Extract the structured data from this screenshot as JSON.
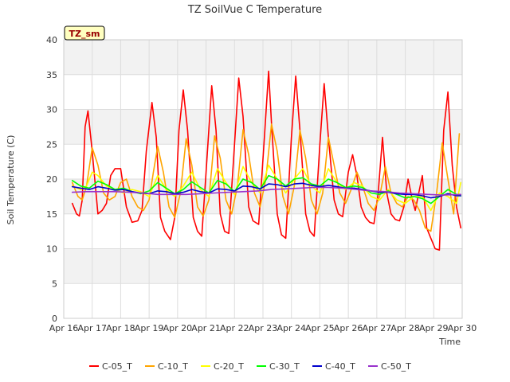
{
  "chart_data": {
    "type": "line",
    "title": "TZ SoilVue C Temperature",
    "xlabel": "Time",
    "ylabel": "Soil Temperature (C)",
    "annotation": "TZ_sm",
    "ylim": [
      0,
      40
    ],
    "xlim": [
      0,
      14
    ],
    "yticks": [
      0,
      5,
      10,
      15,
      20,
      25,
      30,
      35,
      40
    ],
    "xtick_labels": [
      "Apr 16",
      "Apr 17",
      "Apr 18",
      "Apr 19",
      "Apr 20",
      "Apr 21",
      "Apr 22",
      "Apr 23",
      "Apr 24",
      "Apr 25",
      "Apr 26",
      "Apr 27",
      "Apr 28",
      "Apr 29",
      "Apr 30"
    ],
    "grid": true,
    "banded_background": true,
    "legend_position": "bottom",
    "x_units": "days since Apr 16 00:00",
    "series": [
      {
        "name": "C-05_T",
        "color": "#ff0000",
        "x": [
          0.3,
          0.45,
          0.55,
          0.65,
          0.75,
          0.85,
          1.0,
          1.2,
          1.35,
          1.5,
          1.65,
          1.8,
          2.0,
          2.2,
          2.4,
          2.6,
          2.75,
          2.9,
          3.1,
          3.25,
          3.4,
          3.55,
          3.75,
          3.9,
          4.05,
          4.2,
          4.35,
          4.55,
          4.7,
          4.85,
          5.0,
          5.2,
          5.35,
          5.5,
          5.65,
          5.8,
          6.0,
          6.15,
          6.3,
          6.5,
          6.65,
          6.85,
          7.05,
          7.2,
          7.3,
          7.5,
          7.65,
          7.8,
          8.0,
          8.15,
          8.3,
          8.5,
          8.65,
          8.8,
          9.0,
          9.15,
          9.3,
          9.5,
          9.65,
          9.8,
          10.0,
          10.15,
          10.3,
          10.45,
          10.6,
          10.75,
          10.9,
          11.05,
          11.2,
          11.35,
          11.5,
          11.65,
          11.8,
          11.95,
          12.1,
          12.25,
          12.35,
          12.45,
          12.6,
          12.75,
          12.9,
          13.05,
          13.2,
          13.35,
          13.5,
          13.65,
          13.8,
          13.95
        ],
        "values": [
          16.5,
          15.0,
          14.7,
          17.0,
          27.5,
          29.8,
          24.0,
          15.0,
          15.5,
          16.5,
          20.5,
          21.5,
          21.5,
          16.0,
          13.8,
          14.0,
          15.5,
          24.0,
          31.0,
          26.0,
          14.5,
          12.5,
          11.3,
          14.5,
          27.0,
          32.8,
          27.0,
          14.5,
          12.5,
          11.8,
          21.0,
          33.4,
          27.0,
          15.0,
          12.5,
          12.2,
          25.0,
          34.5,
          29.0,
          16.0,
          14.0,
          13.5,
          26.0,
          35.5,
          28.0,
          15.0,
          12.0,
          11.5,
          26.0,
          34.8,
          27.0,
          15.0,
          12.5,
          11.8,
          25.0,
          33.7,
          26.0,
          17.0,
          15.0,
          14.6,
          21.0,
          23.5,
          20.5,
          16.0,
          14.5,
          13.8,
          13.6,
          18.0,
          26.0,
          18.0,
          15.0,
          14.2,
          14.0,
          16.0,
          20.0,
          17.0,
          15.5,
          17.5,
          20.5,
          13.0,
          11.5,
          10.0,
          9.8,
          27.0,
          32.5,
          22.0,
          16.0,
          13.0
        ]
      },
      {
        "name": "C-10_T",
        "color": "#ffa500",
        "x": [
          0.3,
          0.5,
          0.65,
          0.8,
          1.0,
          1.2,
          1.4,
          1.6,
          1.8,
          2.0,
          2.2,
          2.4,
          2.6,
          2.8,
          3.0,
          3.15,
          3.3,
          3.5,
          3.7,
          3.9,
          4.1,
          4.3,
          4.5,
          4.7,
          4.9,
          5.1,
          5.3,
          5.5,
          5.7,
          5.9,
          6.1,
          6.3,
          6.5,
          6.7,
          6.9,
          7.1,
          7.3,
          7.5,
          7.7,
          7.9,
          8.1,
          8.3,
          8.5,
          8.7,
          8.9,
          9.1,
          9.3,
          9.5,
          9.7,
          9.9,
          10.1,
          10.3,
          10.5,
          10.7,
          10.9,
          11.1,
          11.3,
          11.5,
          11.7,
          11.9,
          12.1,
          12.3,
          12.5,
          12.7,
          12.9,
          13.1,
          13.3,
          13.5,
          13.7,
          13.9
        ],
        "values": [
          19.5,
          17.5,
          17.0,
          19.0,
          24.5,
          22.0,
          18.0,
          17.0,
          17.5,
          19.5,
          20.0,
          17.5,
          16.0,
          15.5,
          17.0,
          21.0,
          24.7,
          21.0,
          16.0,
          14.5,
          18.0,
          25.8,
          22.0,
          16.0,
          14.7,
          17.0,
          26.2,
          23.0,
          17.0,
          15.0,
          19.0,
          27.1,
          23.5,
          18.0,
          16.0,
          20.0,
          27.9,
          24.0,
          17.5,
          15.0,
          19.0,
          27.0,
          23.0,
          17.0,
          15.0,
          18.0,
          26.0,
          22.0,
          18.0,
          16.5,
          18.5,
          21.0,
          19.0,
          16.5,
          15.5,
          17.5,
          21.8,
          18.0,
          16.5,
          16.0,
          17.5,
          17.0,
          15.5,
          13.0,
          12.5,
          18.0,
          25.2,
          20.0,
          15.0,
          26.5
        ]
      },
      {
        "name": "C-20_T",
        "color": "#ffff00",
        "x": [
          0.3,
          0.6,
          0.8,
          1.0,
          1.2,
          1.5,
          1.8,
          2.1,
          2.4,
          2.7,
          3.0,
          3.3,
          3.6,
          3.9,
          4.2,
          4.5,
          4.8,
          5.1,
          5.4,
          5.7,
          6.0,
          6.3,
          6.6,
          6.9,
          7.2,
          7.5,
          7.8,
          8.1,
          8.4,
          8.7,
          9.0,
          9.3,
          9.6,
          9.9,
          10.2,
          10.5,
          10.8,
          11.1,
          11.4,
          11.7,
          12.0,
          12.3,
          12.6,
          12.9,
          13.2,
          13.5,
          13.8,
          13.95
        ],
        "values": [
          19.0,
          18.5,
          19.0,
          21.0,
          20.5,
          19.0,
          18.5,
          18.0,
          18.5,
          18.2,
          17.5,
          20.5,
          18.5,
          17.5,
          19.0,
          21.0,
          18.5,
          17.5,
          21.5,
          19.5,
          17.8,
          21.8,
          19.5,
          18.0,
          22.0,
          20.0,
          18.0,
          20.0,
          21.5,
          19.0,
          18.0,
          21.5,
          19.5,
          18.5,
          19.5,
          19.0,
          17.5,
          17.0,
          18.5,
          17.0,
          16.5,
          17.5,
          17.5,
          15.5,
          18.0,
          17.5,
          16.5,
          19.5
        ]
      },
      {
        "name": "C-30_T",
        "color": "#00ff00",
        "x": [
          0.3,
          0.6,
          0.9,
          1.2,
          1.5,
          1.8,
          2.1,
          2.4,
          2.7,
          3.0,
          3.3,
          3.6,
          3.9,
          4.2,
          4.5,
          4.8,
          5.1,
          5.4,
          5.7,
          6.0,
          6.3,
          6.6,
          6.9,
          7.2,
          7.5,
          7.8,
          8.1,
          8.4,
          8.7,
          9.0,
          9.3,
          9.6,
          9.9,
          10.2,
          10.5,
          10.8,
          11.1,
          11.4,
          11.7,
          12.0,
          12.3,
          12.6,
          12.9,
          13.2,
          13.5,
          13.8,
          13.95
        ],
        "values": [
          19.8,
          19.0,
          18.7,
          19.7,
          19.2,
          18.5,
          18.7,
          18.2,
          17.9,
          18.3,
          19.5,
          18.7,
          17.9,
          18.5,
          19.6,
          18.8,
          18.0,
          19.8,
          19.3,
          18.2,
          20.0,
          19.5,
          18.5,
          20.5,
          20.0,
          19.0,
          20.0,
          20.2,
          19.3,
          19.0,
          20.0,
          19.5,
          18.8,
          19.0,
          18.8,
          18.0,
          17.8,
          18.3,
          17.8,
          17.3,
          17.5,
          17.2,
          16.5,
          17.5,
          18.5,
          17.8,
          17.6
        ]
      },
      {
        "name": "C-40_T",
        "color": "#0000cd",
        "x": [
          0.3,
          0.6,
          0.9,
          1.2,
          1.5,
          1.8,
          2.1,
          2.4,
          2.7,
          3.0,
          3.3,
          3.6,
          3.9,
          4.2,
          4.5,
          4.8,
          5.1,
          5.4,
          5.7,
          6.0,
          6.3,
          6.6,
          6.9,
          7.2,
          7.5,
          7.8,
          8.1,
          8.4,
          8.7,
          9.0,
          9.3,
          9.6,
          9.9,
          10.2,
          10.5,
          10.8,
          11.1,
          11.4,
          11.7,
          12.0,
          12.3,
          12.6,
          12.9,
          13.2,
          13.5,
          13.8,
          13.95
        ],
        "values": [
          18.9,
          18.7,
          18.5,
          18.9,
          18.7,
          18.4,
          18.5,
          18.2,
          18.0,
          17.9,
          18.3,
          18.2,
          17.9,
          18.1,
          18.5,
          18.2,
          18.0,
          18.6,
          18.5,
          18.3,
          19.0,
          18.9,
          18.6,
          19.3,
          19.2,
          18.9,
          19.3,
          19.4,
          19.1,
          18.9,
          19.1,
          18.9,
          18.7,
          18.7,
          18.5,
          18.3,
          18.1,
          18.1,
          17.9,
          17.8,
          17.8,
          17.6,
          17.3,
          17.5,
          17.9,
          17.6,
          17.6
        ]
      },
      {
        "name": "C-50_T",
        "color": "#9932cc",
        "x": [
          0.3,
          0.8,
          1.3,
          1.8,
          2.3,
          2.8,
          3.3,
          3.8,
          4.3,
          4.8,
          5.3,
          5.8,
          6.3,
          6.8,
          7.3,
          7.8,
          8.3,
          8.8,
          9.3,
          9.8,
          10.3,
          10.8,
          11.3,
          11.8,
          12.3,
          12.8,
          13.3,
          13.95
        ],
        "values": [
          18.1,
          18.2,
          18.2,
          18.2,
          18.1,
          18.0,
          17.8,
          17.8,
          17.8,
          17.9,
          18.0,
          18.1,
          18.2,
          18.3,
          18.5,
          18.6,
          18.7,
          18.8,
          18.8,
          18.7,
          18.5,
          18.3,
          18.2,
          18.0,
          17.9,
          17.8,
          17.7,
          17.8
        ]
      }
    ]
  }
}
